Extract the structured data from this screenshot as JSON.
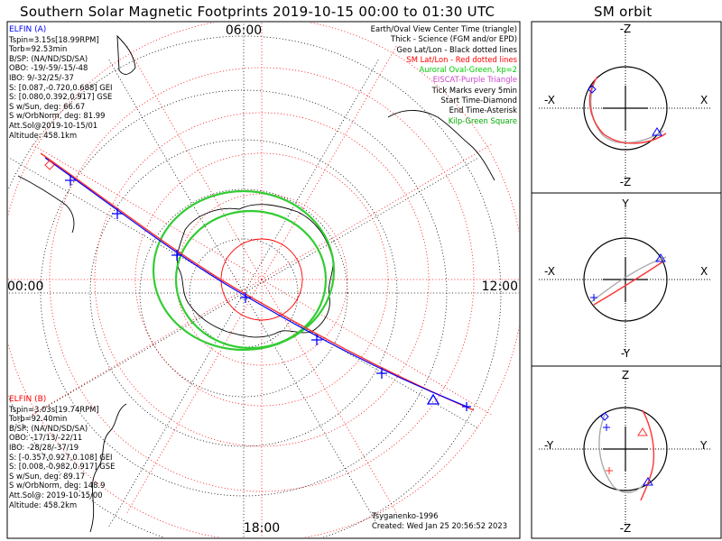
{
  "title": "Southern Solar Magnetic Footprints 2019-10-15 00:00 to 01:30 UTC",
  "orbit_title": "SM orbit",
  "hours": {
    "top": "06:00",
    "left": "00:00",
    "right": "12:00",
    "bottom": "18:00"
  },
  "elfin_a": {
    "title": "ELFIN (A)",
    "color": "#0000ff",
    "lines": [
      "Tspin=3.15s[18.99RPM]",
      "Torb=92.53min",
      "B/SP: (NA/ND/SD/SA)",
      "OBO: -19/-59/-15/-48",
      "IBO: 9/-32/25/-37",
      "S: [0.087,-0.720,0.688] GEI",
      "S: [0.080,0.392,0.917] GSE",
      "S w/Sun, deg: 66.67",
      "S w/OrbNorm, deg: 81.99",
      "Att.Sol@2019-10-15/01",
      "Altitude: 458.1km"
    ]
  },
  "elfin_b": {
    "title": "ELFIN (B)",
    "color": "#ff0000",
    "lines": [
      "Tspin=3.03s[19.74RPM]",
      "Torb=92.40min",
      "B/SP: (NA/ND/SD/SA)",
      "OBO: -17/13/-22/11",
      "IBO: -28/28/-37/19",
      "S: [-0.357,0.927,0.108] GEI",
      "S: [0.008,-0.982,0.917] GSE",
      "S w/Sun, deg: 89.17",
      "S w/OrbNorm, deg: 148.9",
      "Att.Sol@: 2019-10-15/00",
      "Altitude: 458.2km"
    ]
  },
  "legend": [
    {
      "text": "Earth/Oval View Center Time (triangle)",
      "color": "#000000"
    },
    {
      "text": "Thick - Science (FGM and/or EPD)",
      "color": "#000000"
    },
    {
      "text": "Geo Lat/Lon - Black dotted lines",
      "color": "#000000"
    },
    {
      "text": "SM Lat/Lon - Red dotted lines",
      "color": "#ff0000"
    },
    {
      "text": "Auroral Oval-Green, kp=2",
      "color": "#00cc00"
    },
    {
      "text": "EISCAT-Purple Triangle",
      "color": "#cc44cc"
    },
    {
      "text": "Tick Marks every 5min",
      "color": "#000000"
    },
    {
      "text": "Start Time-Diamond",
      "color": "#000000"
    },
    {
      "text": "End Time-Asterisk",
      "color": "#000000"
    },
    {
      "text": "Kilp-Green Square",
      "color": "#00aa00"
    }
  ],
  "footer": {
    "author": "Tsyganenko-1996",
    "created": "Created: Wed Jan 25 20:56:52 2023"
  },
  "panels": [
    {
      "top": "-Z",
      "bottom": "-Z",
      "left": "-X",
      "right": "X"
    },
    {
      "top": "Y",
      "bottom": "-Y",
      "left": "-X",
      "right": "X"
    },
    {
      "top": "Z",
      "bottom": "-Z",
      "left": "-Y",
      "right": "Y"
    }
  ]
}
